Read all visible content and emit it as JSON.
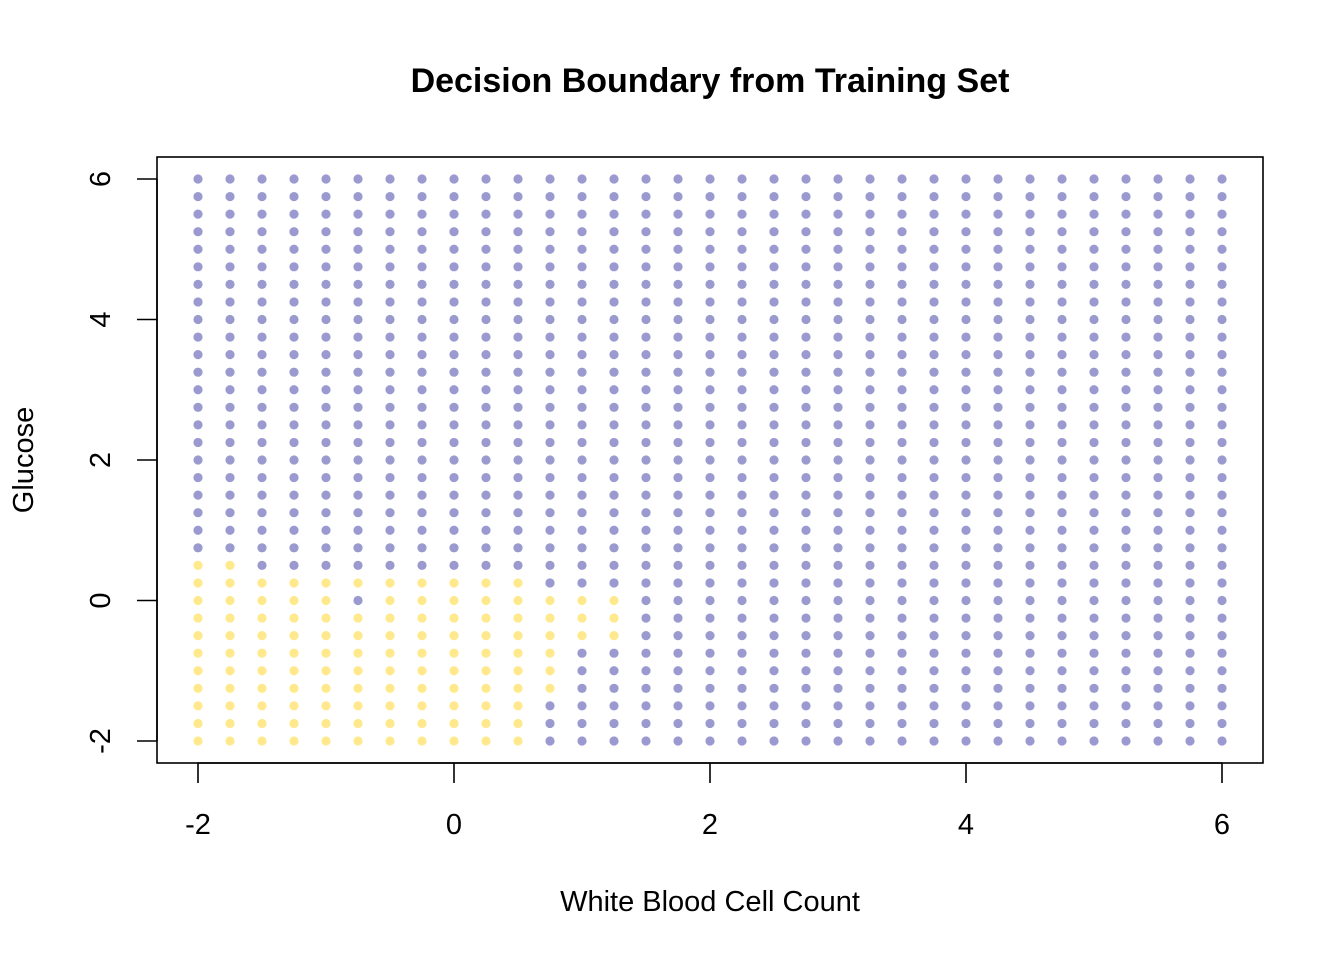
{
  "chart_data": {
    "type": "scatter",
    "title": "Decision Boundary from Training Set",
    "xlabel": "White Blood Cell Count",
    "ylabel": "Glucose",
    "xlim": [
      -2,
      6
    ],
    "ylim": [
      -2,
      6
    ],
    "x_ticks": [
      "-2",
      "0",
      "2",
      "4",
      "6"
    ],
    "y_ticks": [
      "-2",
      "0",
      "2",
      "4",
      "6"
    ],
    "grid": false,
    "legend": "none",
    "grid_points": {
      "x_start": -2,
      "x_end": 6,
      "x_step": 0.25,
      "y_start": -2,
      "y_end": 6,
      "y_step": 0.25
    },
    "colors": {
      "class_a": "#9a9ad0",
      "class_b": "#ffe98c"
    },
    "class_b_region": [
      {
        "x_min": -2,
        "x_max": 0.5,
        "y_min": -2,
        "y_max": 0.25
      },
      {
        "x_min": -2,
        "x_max": -1.75,
        "y_min": 0.5,
        "y_max": 0.5
      },
      {
        "x_min": 0.75,
        "x_max": 0.75,
        "y_min": -1.25,
        "y_max": 0.0
      },
      {
        "x_min": 1.0,
        "x_max": 1.25,
        "y_min": -0.5,
        "y_max": 0.0
      }
    ],
    "class_b_exceptions": [
      {
        "x": -0.75,
        "y": 0
      }
    ]
  }
}
